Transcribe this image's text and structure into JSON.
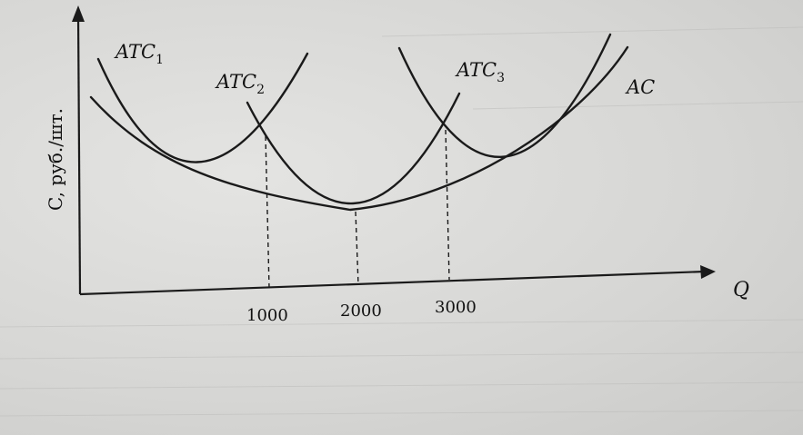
{
  "axes": {
    "x_label": "Q",
    "y_label": "C, руб./шт."
  },
  "curves": [
    {
      "id": "atc1",
      "main": "ATC",
      "sub": "1"
    },
    {
      "id": "atc2",
      "main": "ATC",
      "sub": "2"
    },
    {
      "id": "atc3",
      "main": "ATC",
      "sub": "3"
    },
    {
      "id": "ac",
      "main": "AC"
    }
  ],
  "x_ticks": [
    "1000",
    "2000",
    "3000"
  ]
}
